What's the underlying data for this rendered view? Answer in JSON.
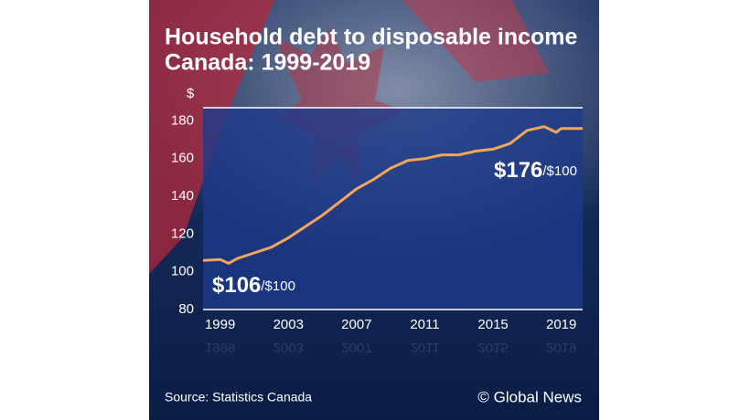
{
  "chart_data": {
    "type": "line",
    "title": "Household debt to disposable income",
    "subtitle": "Canada: 1999-2019",
    "y_label": "$",
    "x": [
      1998,
      1999,
      1999.5,
      2000,
      2001,
      2002,
      2003,
      2004,
      2005,
      2006,
      2007,
      2008,
      2009,
      2009.5,
      2010,
      2011,
      2012,
      2013,
      2014,
      2015,
      2016,
      2017,
      2018,
      2018.7,
      2019,
      2020.25
    ],
    "values": [
      106,
      106.5,
      104.5,
      107,
      110,
      113,
      118,
      124,
      130,
      137,
      144,
      149,
      155,
      157,
      159,
      160,
      162,
      162,
      164,
      165,
      168,
      175,
      177,
      174,
      176,
      176
    ],
    "color": "#f2a65a",
    "xlim": [
      1998,
      2020.25
    ],
    "xticks": [
      1999,
      2003,
      2007,
      2011,
      2015,
      2019
    ],
    "ylim": [
      80,
      187
    ],
    "yticks": [
      80,
      100,
      120,
      140,
      160,
      180
    ],
    "grid": false,
    "annotations": [
      {
        "text": "$106",
        "unit": "/$100"
      },
      {
        "text": "$176",
        "unit": "/$100"
      }
    ],
    "source": "Source: Statistics Canada",
    "credit": "© Global News"
  }
}
